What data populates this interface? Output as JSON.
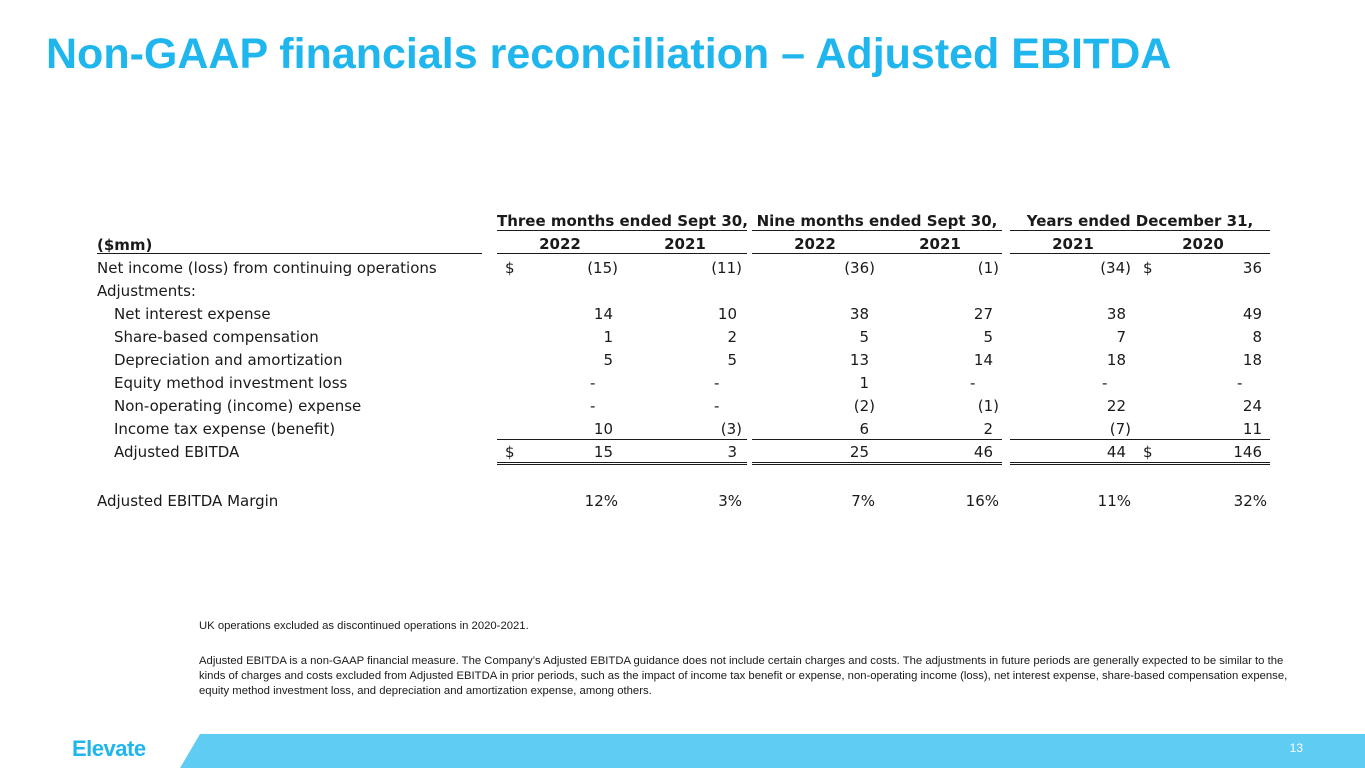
{
  "title": "Non-GAAP financials reconciliation – Adjusted EBITDA",
  "table": {
    "unit_label": "($mm)",
    "groups": [
      {
        "label": "Three months ended Sept 30,",
        "years": [
          "2022",
          "2021"
        ]
      },
      {
        "label": "Nine months ended Sept 30,",
        "years": [
          "2022",
          "2021"
        ]
      },
      {
        "label": "Years ended December 31,",
        "years": [
          "2021",
          "2020"
        ]
      }
    ],
    "currency_symbol": "$",
    "rows": [
      {
        "label": "Net income (loss) from continuing operations",
        "values": [
          "(15)",
          "(11)",
          "(36)",
          "(1)",
          "(34)",
          "36"
        ]
      },
      {
        "label": "Adjustments:",
        "values": [
          "",
          "",
          "",
          "",
          "",
          ""
        ]
      },
      {
        "label": "Net interest expense",
        "values": [
          "14",
          "10",
          "38",
          "27",
          "38",
          "49"
        ]
      },
      {
        "label": "Share-based compensation",
        "values": [
          "1",
          "2",
          "5",
          "5",
          "7",
          "8"
        ]
      },
      {
        "label": "Depreciation and amortization",
        "values": [
          "5",
          "5",
          "13",
          "14",
          "18",
          "18"
        ]
      },
      {
        "label": "Equity method investment loss",
        "values": [
          "-",
          "-",
          "1",
          "-",
          "-",
          "-"
        ]
      },
      {
        "label": "Non-operating (income) expense",
        "values": [
          "-",
          "-",
          "(2)",
          "(1)",
          "22",
          "24"
        ]
      },
      {
        "label": "Income tax expense (benefit)",
        "values": [
          "10",
          "(3)",
          "6",
          "2",
          "(7)",
          "11"
        ]
      },
      {
        "label": "Adjusted EBITDA",
        "values": [
          "15",
          "3",
          "25",
          "46",
          "44",
          "146"
        ]
      }
    ],
    "margin_row": {
      "label": "Adjusted EBITDA Margin",
      "values": [
        "12%",
        "3%",
        "7%",
        "16%",
        "11%",
        "32%"
      ]
    }
  },
  "notes": {
    "note1": "UK operations excluded as discontinued operations in 2020-2021.",
    "note2": "Adjusted EBITDA is a non-GAAP financial measure. The Company’s Adjusted EBITDA guidance does not include certain charges and costs. The adjustments in future periods are generally expected to be similar to the kinds of charges and costs excluded from Adjusted EBITDA in prior periods, such as the impact of income tax benefit or expense, non-operating income (loss), net interest expense, share-based compensation expense, equity method investment loss, and depreciation and amortization expense, among others."
  },
  "footer": {
    "logo_text": "Elevate",
    "page_number": "13"
  },
  "colors": {
    "accent": "#1fb6ee",
    "footer_bar": "#5fcdf3"
  }
}
